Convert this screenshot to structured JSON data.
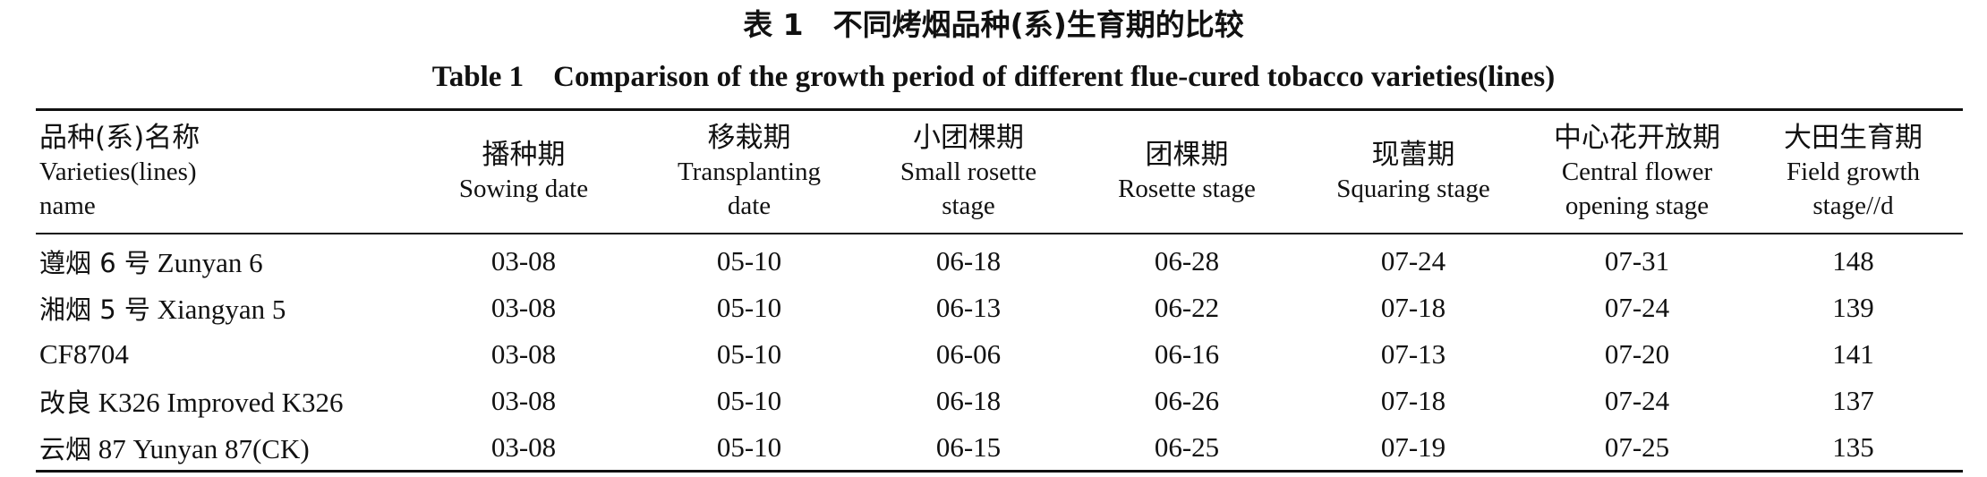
{
  "caption": {
    "cn": "表 1　不同烤烟品种(系)生育期的比较",
    "en": "Table 1　Comparison of the growth period of different flue-cured tobacco varieties(lines)"
  },
  "columns": [
    {
      "cn": "品种(系)名称",
      "en": [
        "Varieties(lines)",
        "name"
      ]
    },
    {
      "cn": "播种期",
      "en": [
        "Sowing date"
      ]
    },
    {
      "cn": "移栽期",
      "en": [
        "Transplanting",
        "date"
      ]
    },
    {
      "cn": "小团棵期",
      "en": [
        "Small rosette",
        "stage"
      ]
    },
    {
      "cn": "团棵期",
      "en": [
        "Rosette stage"
      ]
    },
    {
      "cn": "现蕾期",
      "en": [
        "Squaring stage"
      ]
    },
    {
      "cn": "中心花开放期",
      "en": [
        "Central flower",
        "opening stage"
      ]
    },
    {
      "cn": "大田生育期",
      "en": [
        "Field growth",
        "stage//d"
      ]
    }
  ],
  "rows": [
    {
      "cn": "遵烟 6 号",
      "en": "Zunyan 6",
      "values": [
        "03-08",
        "05-10",
        "06-18",
        "06-28",
        "07-24",
        "07-31",
        "148"
      ]
    },
    {
      "cn": "湘烟 5 号",
      "en": "Xiangyan 5",
      "values": [
        "03-08",
        "05-10",
        "06-13",
        "06-22",
        "07-18",
        "07-24",
        "139"
      ]
    },
    {
      "cn": "",
      "en": "CF8704",
      "values": [
        "03-08",
        "05-10",
        "06-06",
        "06-16",
        "07-13",
        "07-20",
        "141"
      ]
    },
    {
      "cn": "改良",
      "en": "K326 Improved K326",
      "values": [
        "03-08",
        "05-10",
        "06-18",
        "06-26",
        "07-18",
        "07-24",
        "137"
      ]
    },
    {
      "cn": "云烟",
      "en": "87 Yunyan 87(CK)",
      "values": [
        "03-08",
        "05-10",
        "06-15",
        "06-25",
        "07-19",
        "07-25",
        "135"
      ]
    }
  ]
}
